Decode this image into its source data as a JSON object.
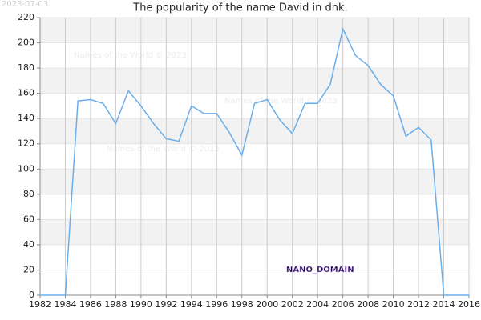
{
  "stamp": "2023-07-03",
  "watermarks": [
    "Names of the World © 2023",
    "Names of the World © 2023",
    "Names of the World © 2023"
  ],
  "domain_label": "NANO_DOMAIN",
  "chart_data": {
    "type": "line",
    "title": "The popularity of the name David in dnk.",
    "x": [
      1982,
      1983,
      1984,
      1985,
      1986,
      1987,
      1988,
      1989,
      1990,
      1991,
      1992,
      1993,
      1994,
      1995,
      1996,
      1997,
      1998,
      1999,
      2000,
      2001,
      2002,
      2003,
      2004,
      2005,
      2006,
      2007,
      2008,
      2009,
      2010,
      2011,
      2012,
      2013,
      2014,
      2015,
      2016
    ],
    "values": [
      0,
      0,
      0,
      154,
      155,
      152,
      136,
      162,
      150,
      136,
      124,
      122,
      150,
      144,
      144,
      129,
      111,
      152,
      155,
      139,
      128,
      152,
      152,
      167,
      211,
      190,
      182,
      167,
      158,
      126,
      133,
      123,
      0,
      0,
      0
    ],
    "color": "#6aaeeb",
    "xlim": [
      1982,
      2016
    ],
    "xticks": [
      1982,
      1984,
      1986,
      1988,
      1990,
      1992,
      1994,
      1996,
      1998,
      2000,
      2002,
      2004,
      2006,
      2008,
      2010,
      2012,
      2014,
      2016
    ],
    "ylim": [
      0,
      220
    ],
    "yticks": [
      0,
      20,
      40,
      60,
      80,
      100,
      120,
      140,
      160,
      180,
      200,
      220
    ],
    "grid": true
  }
}
